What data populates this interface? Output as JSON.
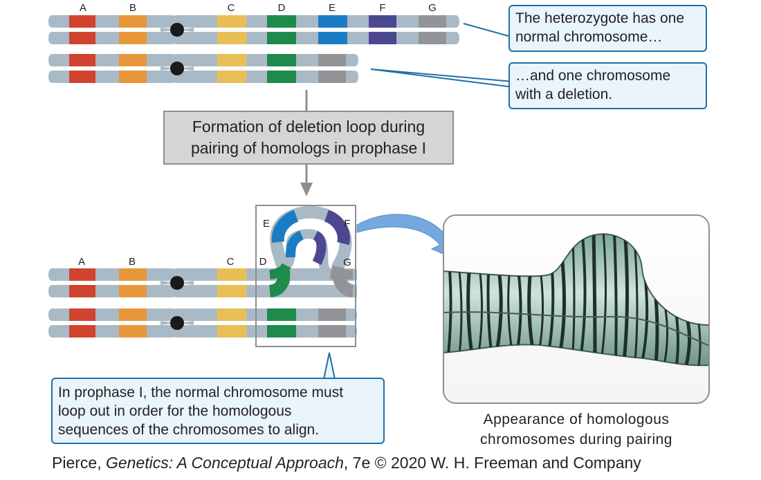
{
  "colors": {
    "A": "#d0432f",
    "B": "#e8963a",
    "C": "#e8bf55",
    "D": "#1e8a4c",
    "E": "#1a7cc4",
    "F": "#4b4791",
    "G": "#929497",
    "arm": "#a9bac6",
    "centromere": "#1a1a1a",
    "callout_border": "#1f6fa8",
    "callout_fill": "#eaf4fb"
  },
  "gene_labels": {
    "top": [
      "A",
      "B",
      "C",
      "D",
      "E",
      "F",
      "G"
    ],
    "bottom": [
      "A",
      "B",
      "C",
      "D"
    ],
    "loop": [
      "E",
      "F",
      "G"
    ]
  },
  "callouts": {
    "normal": [
      "The heterozygote has one",
      "normal chromosome…"
    ],
    "deletion": [
      "…and one chromosome",
      "with a deletion."
    ],
    "prophase": [
      "In prophase I, the normal chromosome must",
      "loop out in order for the homologous",
      "sequences of the chromosomes to align."
    ]
  },
  "process_box": [
    "Formation of deletion loop during",
    "pairing of homologs in prophase I"
  ],
  "micrograph_caption": [
    "Appearance of homologous",
    "chromosomes during pairing"
  ],
  "credit": {
    "author": "Pierce, ",
    "title": "Genetics: A Conceptual Approach",
    "rest": ", 7e © 2020 W. H. Freeman and Company"
  }
}
